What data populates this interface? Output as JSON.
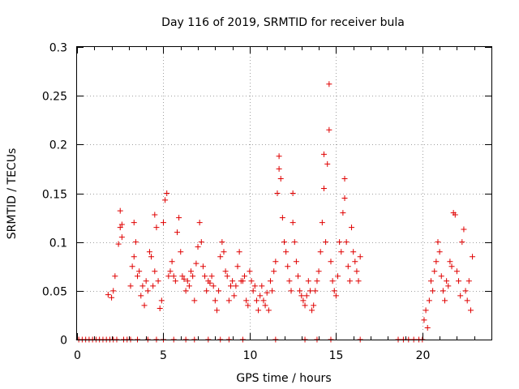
{
  "chart_data": {
    "type": "scatter",
    "title": "Day 116 of 2019, SRMTID for receiver bula",
    "xlabel": "GPS time / hours",
    "ylabel": "SRMTID / TECUs",
    "xlim": [
      0,
      24
    ],
    "ylim": [
      0,
      0.3
    ],
    "x_ticks": [
      0,
      5,
      10,
      15,
      20
    ],
    "x_tick_labels": [
      "0",
      "5",
      "10",
      "15",
      "20"
    ],
    "y_ticks": [
      0,
      0.05,
      0.1,
      0.15,
      0.2,
      0.25,
      0.3
    ],
    "y_tick_labels": [
      "0",
      "0.05",
      "0.1",
      "0.15",
      "0.2",
      "0.25",
      "0.3"
    ],
    "grid": true,
    "marker": "plus",
    "color": "#e00000",
    "series": [
      {
        "name": "SRMTID",
        "points": [
          [
            0.1,
            0
          ],
          [
            0.3,
            0
          ],
          [
            0.5,
            0
          ],
          [
            0.7,
            0
          ],
          [
            0.9,
            0
          ],
          [
            1.1,
            0
          ],
          [
            1.3,
            0
          ],
          [
            1.5,
            0
          ],
          [
            1.7,
            0
          ],
          [
            1.9,
            0
          ],
          [
            2.1,
            0
          ],
          [
            2.3,
            0
          ],
          [
            2.7,
            0
          ],
          [
            2.9,
            0
          ],
          [
            3.1,
            0
          ],
          [
            3.5,
            0
          ],
          [
            4.1,
            0
          ],
          [
            4.6,
            0
          ],
          [
            5.0,
            0
          ],
          [
            5.6,
            0
          ],
          [
            6.3,
            0
          ],
          [
            6.8,
            0
          ],
          [
            7.6,
            0
          ],
          [
            8.3,
            0
          ],
          [
            8.8,
            0
          ],
          [
            9.6,
            0
          ],
          [
            11.5,
            0
          ],
          [
            13.2,
            0
          ],
          [
            13.9,
            0
          ],
          [
            14.7,
            0
          ],
          [
            16.4,
            0
          ],
          [
            18.6,
            0
          ],
          [
            18.9,
            0
          ],
          [
            19.2,
            0
          ],
          [
            19.5,
            0
          ],
          [
            19.8,
            0
          ],
          [
            20.0,
            0
          ],
          [
            1.8,
            0.046
          ],
          [
            2.0,
            0.043
          ],
          [
            2.1,
            0.05
          ],
          [
            2.2,
            0.065
          ],
          [
            2.4,
            0.098
          ],
          [
            2.5,
            0.115
          ],
          [
            2.5,
            0.132
          ],
          [
            2.6,
            0.105
          ],
          [
            2.6,
            0.118
          ],
          [
            3.1,
            0.055
          ],
          [
            3.2,
            0.075
          ],
          [
            3.3,
            0.085
          ],
          [
            3.3,
            0.12
          ],
          [
            3.4,
            0.1
          ],
          [
            3.5,
            0.065
          ],
          [
            3.6,
            0.07
          ],
          [
            3.7,
            0.045
          ],
          [
            3.8,
            0.055
          ],
          [
            3.9,
            0.035
          ],
          [
            4.0,
            0.06
          ],
          [
            4.1,
            0.05
          ],
          [
            4.2,
            0.09
          ],
          [
            4.3,
            0.085
          ],
          [
            4.4,
            0.055
          ],
          [
            4.5,
            0.07
          ],
          [
            4.5,
            0.128
          ],
          [
            4.6,
            0.115
          ],
          [
            4.7,
            0.06
          ],
          [
            4.8,
            0.032
          ],
          [
            4.9,
            0.04
          ],
          [
            5.0,
            0.12
          ],
          [
            5.1,
            0.143
          ],
          [
            5.2,
            0.15
          ],
          [
            5.3,
            0.065
          ],
          [
            5.4,
            0.07
          ],
          [
            5.5,
            0.08
          ],
          [
            5.6,
            0.065
          ],
          [
            5.7,
            0.06
          ],
          [
            5.8,
            0.11
          ],
          [
            5.9,
            0.125
          ],
          [
            6.0,
            0.09
          ],
          [
            6.1,
            0.065
          ],
          [
            6.2,
            0.062
          ],
          [
            6.3,
            0.05
          ],
          [
            6.4,
            0.06
          ],
          [
            6.5,
            0.055
          ],
          [
            6.6,
            0.07
          ],
          [
            6.7,
            0.065
          ],
          [
            6.8,
            0.04
          ],
          [
            6.9,
            0.078
          ],
          [
            7.0,
            0.095
          ],
          [
            7.1,
            0.12
          ],
          [
            7.2,
            0.1
          ],
          [
            7.3,
            0.075
          ],
          [
            7.4,
            0.065
          ],
          [
            7.5,
            0.05
          ],
          [
            7.6,
            0.06
          ],
          [
            7.7,
            0.058
          ],
          [
            7.8,
            0.065
          ],
          [
            7.9,
            0.055
          ],
          [
            8.0,
            0.04
          ],
          [
            8.1,
            0.03
          ],
          [
            8.2,
            0.05
          ],
          [
            8.3,
            0.085
          ],
          [
            8.4,
            0.1
          ],
          [
            8.5,
            0.09
          ],
          [
            8.6,
            0.07
          ],
          [
            8.7,
            0.065
          ],
          [
            8.8,
            0.04
          ],
          [
            8.9,
            0.055
          ],
          [
            9.0,
            0.06
          ],
          [
            9.1,
            0.045
          ],
          [
            9.2,
            0.055
          ],
          [
            9.3,
            0.075
          ],
          [
            9.4,
            0.09
          ],
          [
            9.5,
            0.06
          ],
          [
            9.6,
            0.06
          ],
          [
            9.7,
            0.065
          ],
          [
            9.8,
            0.04
          ],
          [
            9.9,
            0.035
          ],
          [
            10.0,
            0.07
          ],
          [
            10.1,
            0.06
          ],
          [
            10.2,
            0.05
          ],
          [
            10.3,
            0.055
          ],
          [
            10.4,
            0.04
          ],
          [
            10.5,
            0.03
          ],
          [
            10.6,
            0.045
          ],
          [
            10.7,
            0.055
          ],
          [
            10.8,
            0.04
          ],
          [
            10.9,
            0.035
          ],
          [
            11.0,
            0.048
          ],
          [
            11.1,
            0.03
          ],
          [
            11.2,
            0.06
          ],
          [
            11.3,
            0.05
          ],
          [
            11.4,
            0.07
          ],
          [
            11.5,
            0.08
          ],
          [
            11.6,
            0.15
          ],
          [
            11.7,
            0.175
          ],
          [
            11.7,
            0.188
          ],
          [
            11.8,
            0.165
          ],
          [
            11.9,
            0.125
          ],
          [
            12.0,
            0.1
          ],
          [
            12.1,
            0.09
          ],
          [
            12.2,
            0.075
          ],
          [
            12.3,
            0.06
          ],
          [
            12.4,
            0.05
          ],
          [
            12.5,
            0.12
          ],
          [
            12.5,
            0.15
          ],
          [
            12.6,
            0.1
          ],
          [
            12.7,
            0.08
          ],
          [
            12.8,
            0.065
          ],
          [
            12.9,
            0.05
          ],
          [
            13.0,
            0.045
          ],
          [
            13.1,
            0.04
          ],
          [
            13.2,
            0.035
          ],
          [
            13.3,
            0.045
          ],
          [
            13.4,
            0.06
          ],
          [
            13.5,
            0.05
          ],
          [
            13.6,
            0.03
          ],
          [
            13.7,
            0.035
          ],
          [
            13.8,
            0.05
          ],
          [
            13.9,
            0.06
          ],
          [
            14.0,
            0.07
          ],
          [
            14.1,
            0.09
          ],
          [
            14.2,
            0.12
          ],
          [
            14.3,
            0.155
          ],
          [
            14.3,
            0.19
          ],
          [
            14.4,
            0.1
          ],
          [
            14.5,
            0.18
          ],
          [
            14.6,
            0.215
          ],
          [
            14.6,
            0.262
          ],
          [
            14.7,
            0.08
          ],
          [
            14.8,
            0.06
          ],
          [
            14.9,
            0.05
          ],
          [
            15.0,
            0.045
          ],
          [
            15.1,
            0.065
          ],
          [
            15.2,
            0.1
          ],
          [
            15.3,
            0.09
          ],
          [
            15.4,
            0.13
          ],
          [
            15.5,
            0.145
          ],
          [
            15.5,
            0.165
          ],
          [
            15.6,
            0.1
          ],
          [
            15.7,
            0.075
          ],
          [
            15.8,
            0.06
          ],
          [
            15.9,
            0.115
          ],
          [
            16.0,
            0.09
          ],
          [
            16.1,
            0.08
          ],
          [
            16.2,
            0.07
          ],
          [
            16.3,
            0.06
          ],
          [
            16.4,
            0.085
          ],
          [
            20.1,
            0.02
          ],
          [
            20.2,
            0.03
          ],
          [
            20.3,
            0.012
          ],
          [
            20.4,
            0.04
          ],
          [
            20.5,
            0.06
          ],
          [
            20.6,
            0.05
          ],
          [
            20.7,
            0.07
          ],
          [
            20.8,
            0.08
          ],
          [
            20.9,
            0.1
          ],
          [
            21.0,
            0.09
          ],
          [
            21.1,
            0.065
          ],
          [
            21.2,
            0.05
          ],
          [
            21.3,
            0.04
          ],
          [
            21.4,
            0.06
          ],
          [
            21.5,
            0.055
          ],
          [
            21.6,
            0.08
          ],
          [
            21.7,
            0.075
          ],
          [
            21.8,
            0.13
          ],
          [
            21.9,
            0.128
          ],
          [
            22.0,
            0.07
          ],
          [
            22.1,
            0.06
          ],
          [
            22.2,
            0.045
          ],
          [
            22.3,
            0.1
          ],
          [
            22.4,
            0.113
          ],
          [
            22.5,
            0.05
          ],
          [
            22.6,
            0.04
          ],
          [
            22.7,
            0.06
          ],
          [
            22.8,
            0.03
          ],
          [
            22.9,
            0.085
          ]
        ]
      }
    ]
  }
}
